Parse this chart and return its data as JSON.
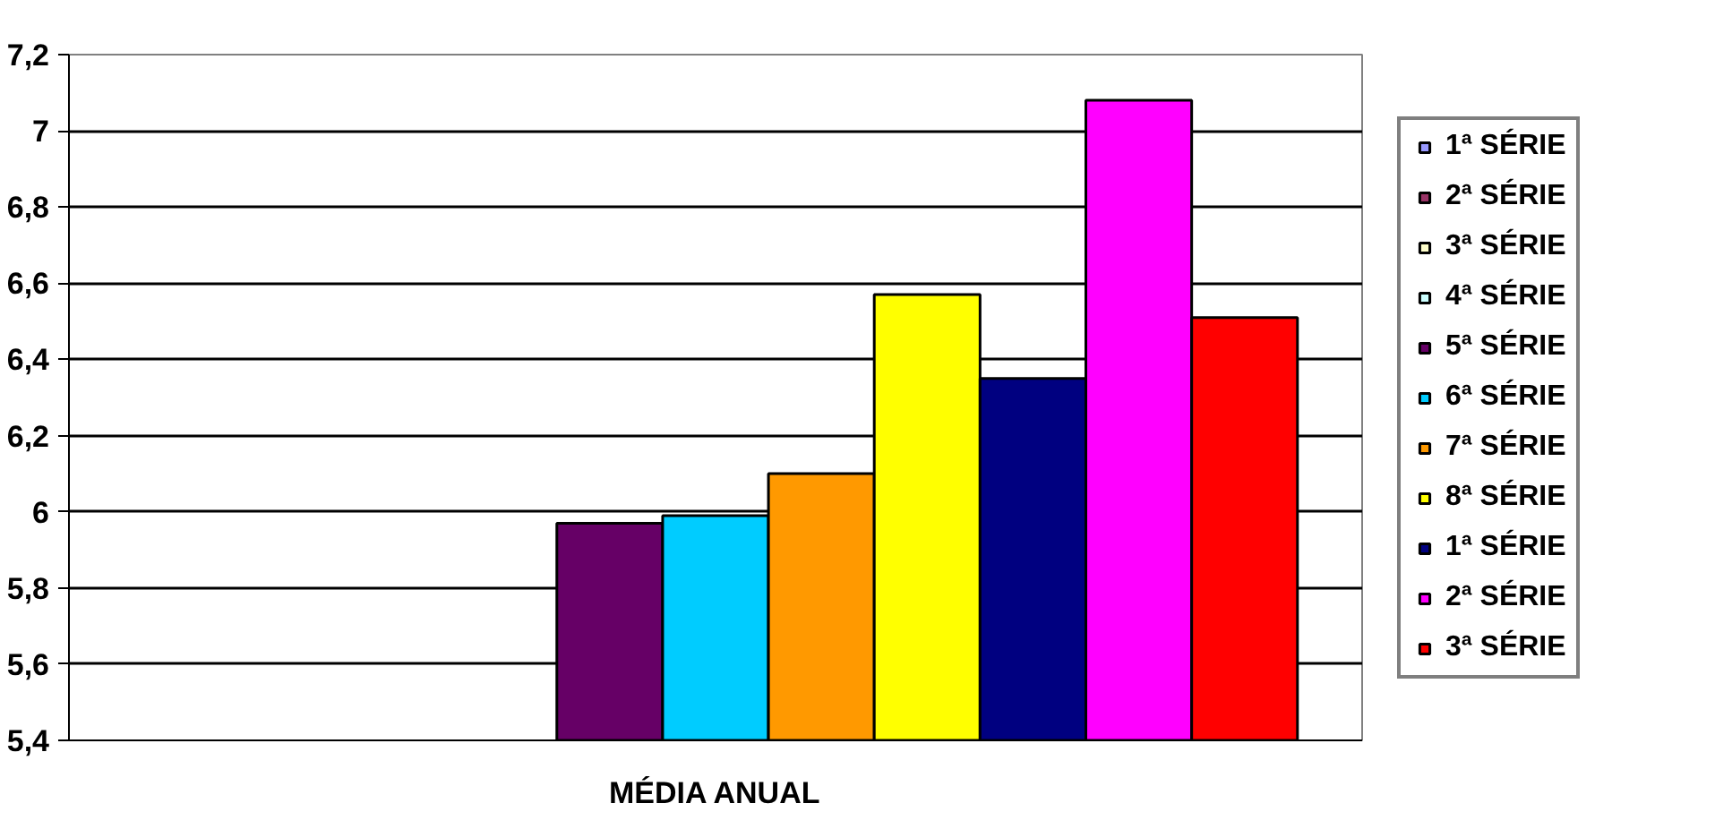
{
  "chart_data": {
    "type": "bar",
    "categories": [
      "MÉDIA ANUAL"
    ],
    "series": [
      {
        "name": "1ª SÉRIE",
        "color": "#9999ff",
        "values": [
          null
        ]
      },
      {
        "name": "2ª SÉRIE",
        "color": "#993366",
        "values": [
          null
        ]
      },
      {
        "name": "3ª SÉRIE",
        "color": "#ffffcc",
        "values": [
          null
        ]
      },
      {
        "name": "4ª SÉRIE",
        "color": "#ccffff",
        "values": [
          null
        ]
      },
      {
        "name": "5ª SÉRIE",
        "color": "#660066",
        "values": [
          5.97
        ]
      },
      {
        "name": "6ª SÉRIE",
        "color": "#00ccff",
        "values": [
          5.99
        ]
      },
      {
        "name": "7ª SÉRIE",
        "color": "#ff9900",
        "values": [
          6.1
        ]
      },
      {
        "name": "8ª SÉRIE",
        "color": "#ffff00",
        "values": [
          6.57
        ]
      },
      {
        "name": "1ª SÉRIE",
        "color": "#000080",
        "values": [
          6.35
        ]
      },
      {
        "name": "2ª SÉRIE",
        "color": "#ff00ff",
        "values": [
          7.08
        ]
      },
      {
        "name": "3ª SÉRIE",
        "color": "#ff0000",
        "values": [
          6.51
        ]
      }
    ],
    "ylim": [
      5.4,
      7.2
    ],
    "yticks": [
      {
        "value": 5.4,
        "label": "5,4"
      },
      {
        "value": 5.6,
        "label": "5,6"
      },
      {
        "value": 5.8,
        "label": "5,8"
      },
      {
        "value": 6,
        "label": "6"
      },
      {
        "value": 6.2,
        "label": "6,2"
      },
      {
        "value": 6.4,
        "label": "6,4"
      },
      {
        "value": 6.6,
        "label": "6,6"
      },
      {
        "value": 6.8,
        "label": "6,8"
      },
      {
        "value": 7,
        "label": "7"
      },
      {
        "value": 7.2,
        "label": "7,2"
      }
    ],
    "grid": "y",
    "legend": "right"
  }
}
